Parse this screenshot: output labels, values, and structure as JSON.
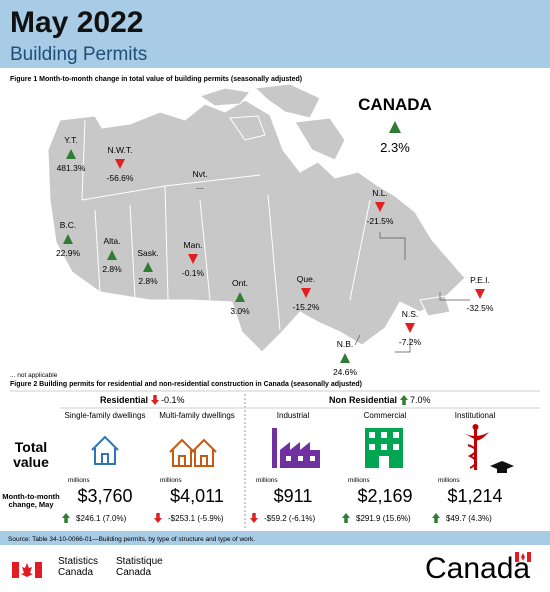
{
  "header": {
    "title": "May 2022",
    "subtitle": "Building Permits"
  },
  "figure1": {
    "caption": "Figure 1  Month-to-month change in total value of building permits (seasonally adjusted)",
    "canada": {
      "label": "CANADA",
      "value": "2.3%",
      "direction": "up"
    },
    "regions": [
      {
        "name": "Y.T.",
        "value": "481.3%",
        "direction": "up"
      },
      {
        "name": "N.W.T.",
        "value": "-56.6%",
        "direction": "down"
      },
      {
        "name": "Nvt.",
        "value": "...",
        "direction": null
      },
      {
        "name": "B.C.",
        "value": "22.9%",
        "direction": "up"
      },
      {
        "name": "Alta.",
        "value": "2.8%",
        "direction": "up"
      },
      {
        "name": "Sask.",
        "value": "2.8%",
        "direction": "up"
      },
      {
        "name": "Man.",
        "value": "-0.1%",
        "direction": "down"
      },
      {
        "name": "Ont.",
        "value": "3.0%",
        "direction": "up"
      },
      {
        "name": "Que.",
        "value": "-15.2%",
        "direction": "down"
      },
      {
        "name": "N.L.",
        "value": "-21.5%",
        "direction": "down"
      },
      {
        "name": "P.E.I.",
        "value": "-32.5%",
        "direction": "down"
      },
      {
        "name": "N.S.",
        "value": "-7.2%",
        "direction": "down"
      },
      {
        "name": "N.B.",
        "value": "24.6%",
        "direction": "up"
      }
    ],
    "note": "... not applicable"
  },
  "figure2": {
    "caption": "Figure 2  Building permits for residential and non-residential construction in Canada (seasonally adjusted)",
    "groups": [
      {
        "name": "Residential",
        "change": "-0.1%",
        "direction": "down"
      },
      {
        "name": "Non Residential",
        "change": "7.0%",
        "direction": "up"
      }
    ],
    "row_labels": {
      "total": "Total value",
      "change": "Month-to-month change, May"
    },
    "unit": "millions",
    "columns": [
      {
        "name": "Single-family dwellings",
        "total": "$3,760",
        "change": "$246.1 (7.0%)",
        "direction": "up"
      },
      {
        "name": "Multi-family dwellings",
        "total": "$4,011",
        "change": "-$253.1 (-5.9%)",
        "direction": "down"
      },
      {
        "name": "Industrial",
        "total": "$911",
        "change": "-$59.2 (-6.1%)",
        "direction": "down"
      },
      {
        "name": "Commercial",
        "total": "$2,169",
        "change": "$291.9 (15.6%)",
        "direction": "up"
      },
      {
        "name": "Institutional",
        "total": "$1,214",
        "change": "$49.7 (4.3%)",
        "direction": "up"
      }
    ]
  },
  "source": "Source: Table 34-10-0066-01—Building permits, by type of structure and type of work.",
  "footer": {
    "agency_en": "Statistics Canada",
    "agency_fr": "Statistique Canada",
    "wordmark": "Canada"
  }
}
